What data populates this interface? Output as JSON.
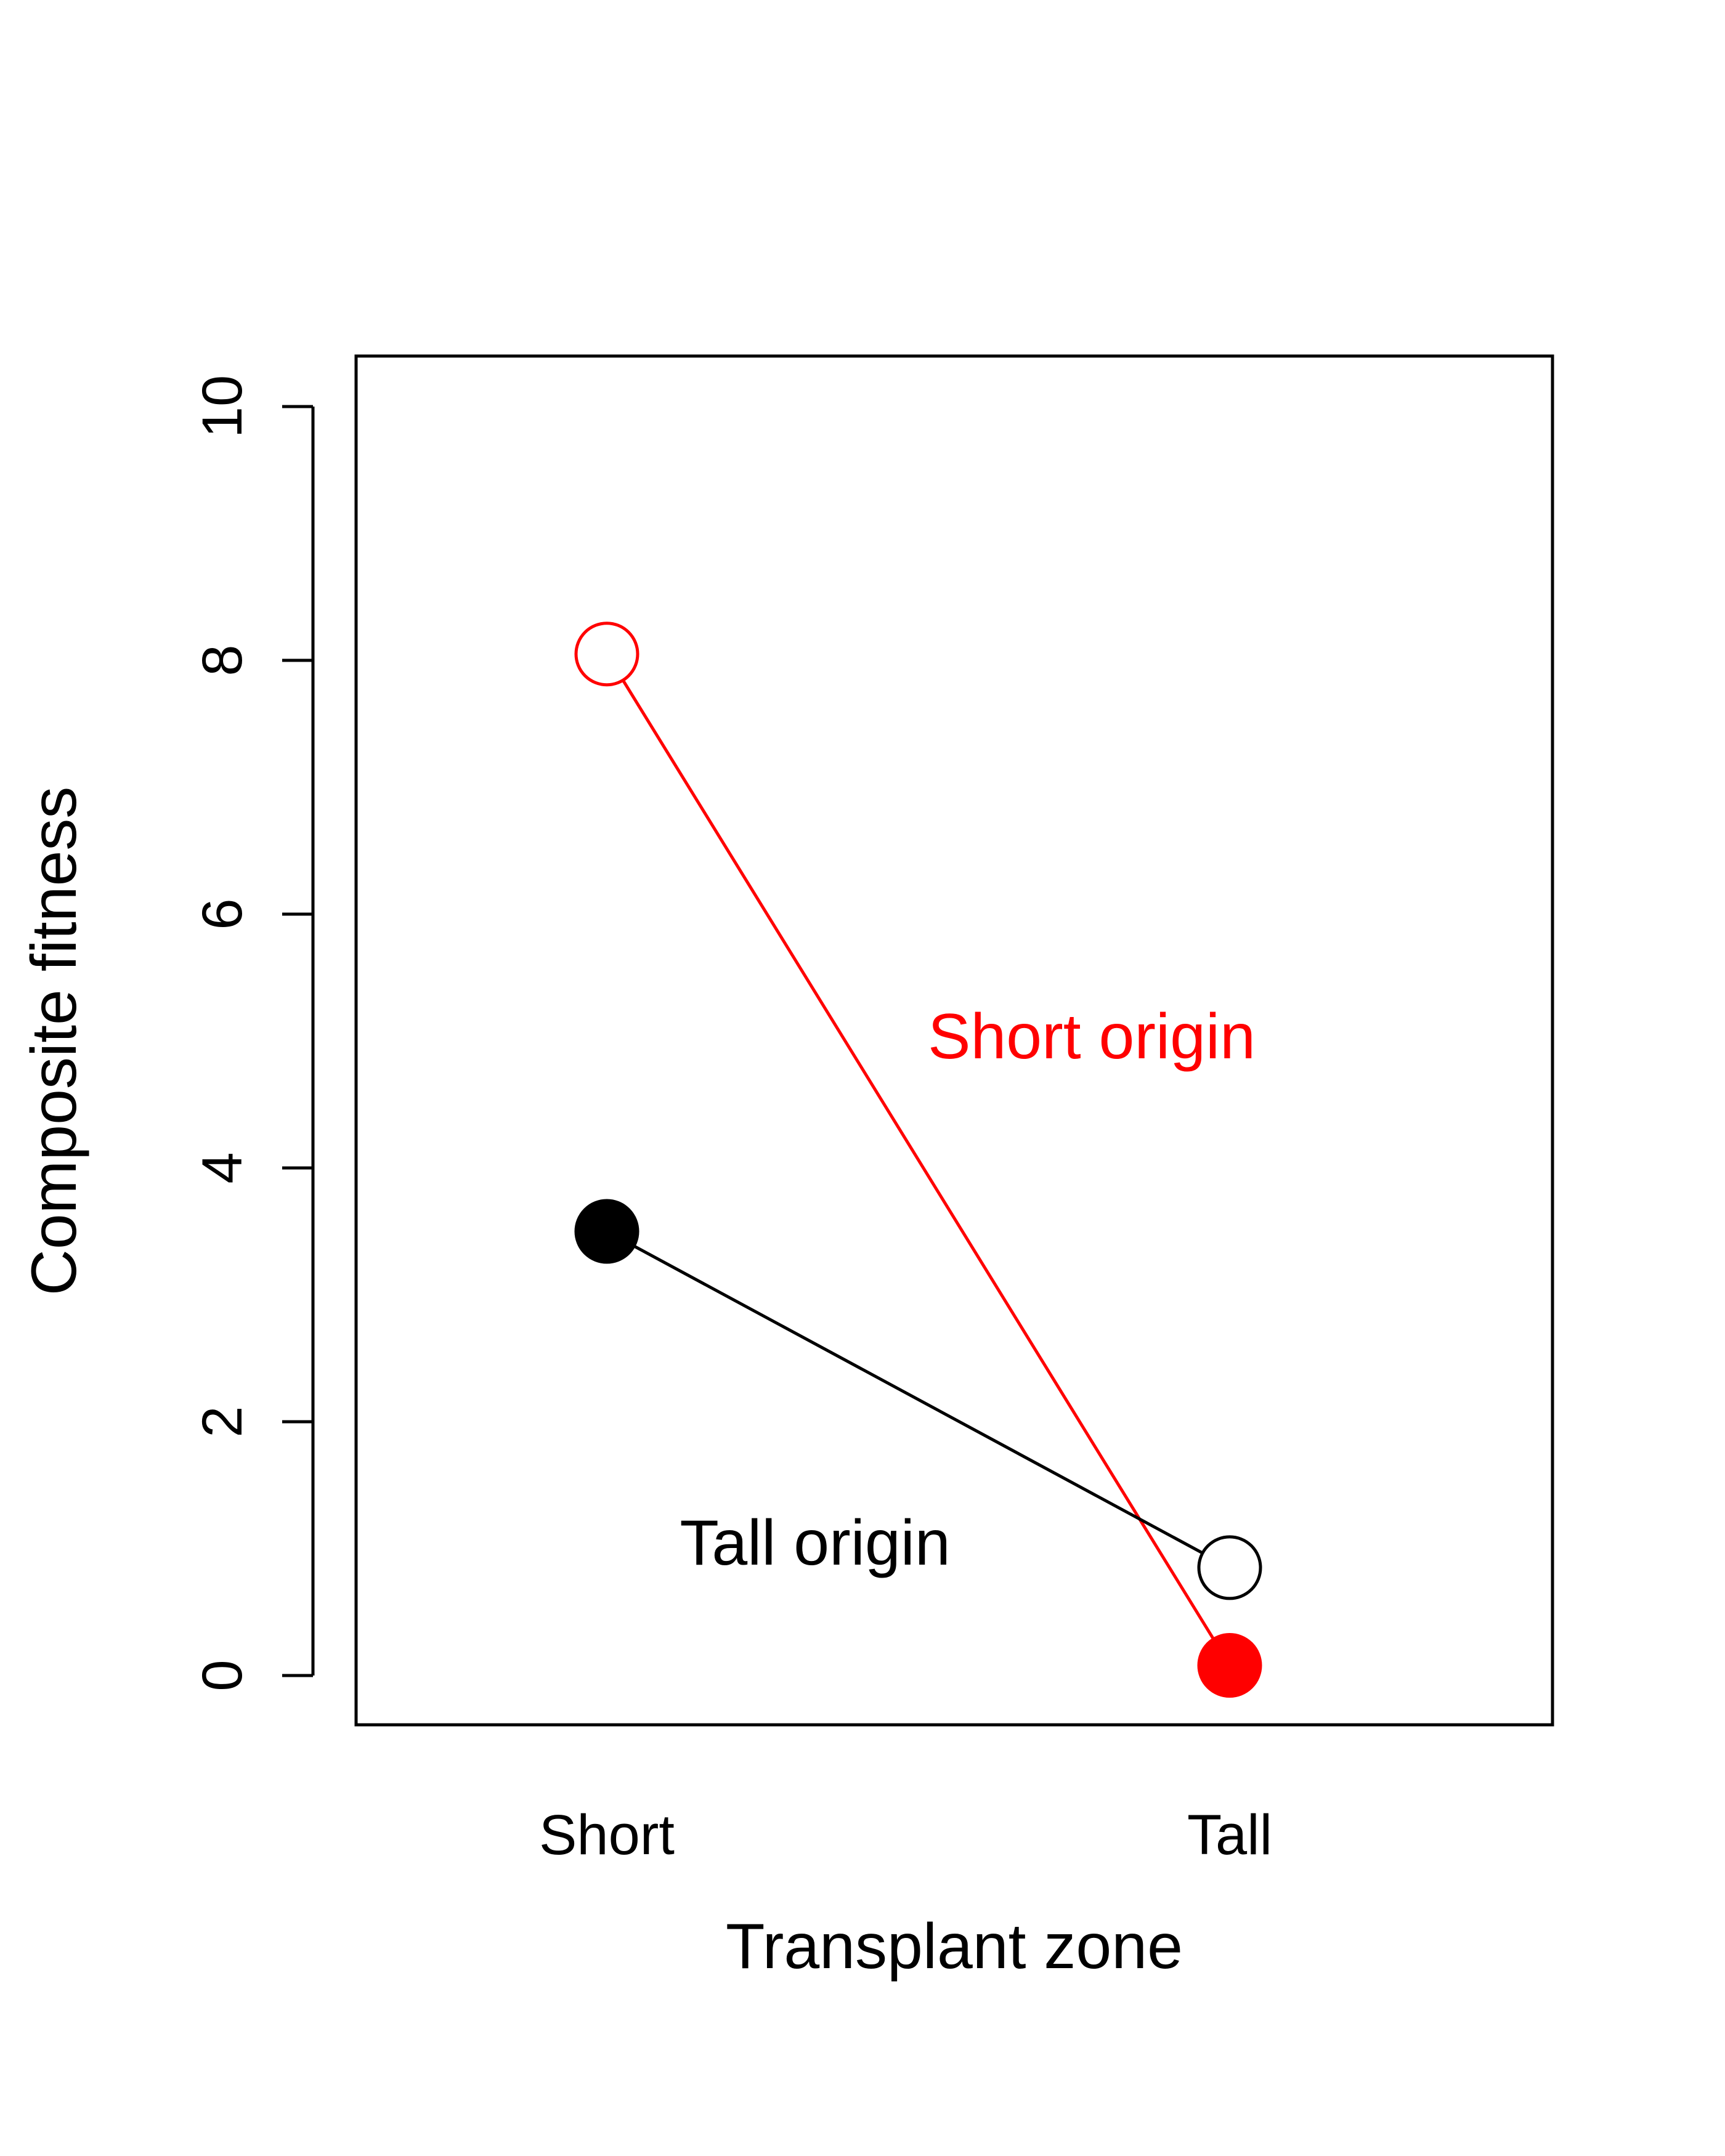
{
  "chart_data": {
    "type": "line",
    "title": "",
    "xlabel": "Transplant zone",
    "ylabel": "Composite fitness",
    "categories": [
      "Short",
      "Tall"
    ],
    "ylim": [
      0,
      10
    ],
    "yticks": [
      0,
      2,
      4,
      6,
      8,
      10
    ],
    "grid": false,
    "legend": "none",
    "series": [
      {
        "name": "Short origin",
        "color": "#ff0000",
        "values": [
          8.05,
          0.08
        ],
        "markers": [
          {
            "category": "Short",
            "fill": "open"
          },
          {
            "category": "Tall",
            "fill": "filled"
          }
        ]
      },
      {
        "name": "Tall origin",
        "color": "#000000",
        "values": [
          3.5,
          0.85
        ],
        "markers": [
          {
            "category": "Short",
            "fill": "filled"
          },
          {
            "category": "Tall",
            "fill": "open"
          }
        ]
      }
    ]
  }
}
